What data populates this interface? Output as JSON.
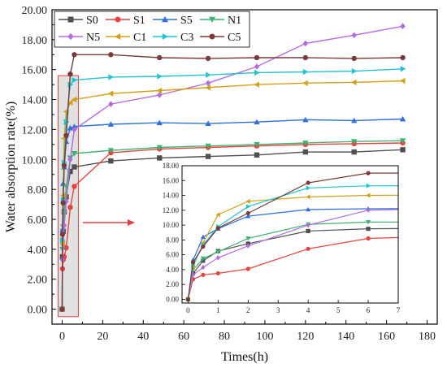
{
  "chart_data": [
    {
      "type": "line",
      "xlabel": "Times(h)",
      "ylabel": "Water absorption rate(%)",
      "xlim": [
        -5,
        185
      ],
      "ylim": [
        -1.0,
        20.0
      ],
      "xticks": [
        "0",
        "20",
        "40",
        "60",
        "80",
        "100",
        "120",
        "140",
        "160",
        "180"
      ],
      "yticks": [
        "0.00",
        "2.00",
        "4.00",
        "6.00",
        "8.00",
        "10.00",
        "12.00",
        "14.00",
        "16.00",
        "18.00",
        "20.00"
      ],
      "legend": "top-left, 2 rows",
      "highlight_region": [
        -2,
        8
      ],
      "series": [
        {
          "name": "S0",
          "color": "#505050",
          "marker": "square",
          "x": [
            0,
            0.167,
            0.5,
            1,
            2,
            4,
            6,
            24,
            48,
            72,
            96,
            120,
            144,
            168
          ],
          "y": [
            0,
            3.5,
            5.2,
            6.5,
            7.5,
            9.2,
            9.5,
            9.9,
            10.1,
            10.2,
            10.3,
            10.5,
            10.5,
            10.65
          ]
        },
        {
          "name": "S1",
          "color": "#e8423d",
          "marker": "circle",
          "x": [
            0,
            0.167,
            0.5,
            1,
            2,
            4,
            6,
            24,
            48,
            72,
            96,
            120,
            144,
            168
          ],
          "y": [
            0,
            2.7,
            3.3,
            3.5,
            4.1,
            6.8,
            8.2,
            10.45,
            10.7,
            10.8,
            10.9,
            11.0,
            11.05,
            11.1
          ]
        },
        {
          "name": "S5",
          "color": "#2f6fdb",
          "marker": "triangle-up",
          "x": [
            0,
            0.167,
            0.5,
            1,
            2,
            4,
            6,
            24,
            48,
            72,
            96,
            120,
            144,
            168
          ],
          "y": [
            0,
            5.3,
            8.4,
            9.5,
            11.2,
            12.1,
            12.2,
            12.35,
            12.45,
            12.4,
            12.5,
            12.65,
            12.6,
            12.7
          ]
        },
        {
          "name": "N1",
          "color": "#3cb371",
          "marker": "triangle-down",
          "x": [
            0,
            0.167,
            0.5,
            1,
            2,
            4,
            6,
            24,
            48,
            72,
            96,
            120,
            144,
            168
          ],
          "y": [
            0,
            4.0,
            5.5,
            6.4,
            8.2,
            10.1,
            10.4,
            10.6,
            10.8,
            10.9,
            11.0,
            11.1,
            11.2,
            11.25
          ]
        },
        {
          "name": "N5",
          "color": "#b36be0",
          "marker": "diamond",
          "x": [
            0,
            0.167,
            0.5,
            1,
            2,
            4,
            6,
            24,
            48,
            72,
            96,
            120,
            144,
            168
          ],
          "y": [
            0,
            3.3,
            4.3,
            5.6,
            7.2,
            10.0,
            12.0,
            13.7,
            14.3,
            15.1,
            16.2,
            17.75,
            18.3,
            18.9
          ]
        },
        {
          "name": "C1",
          "color": "#d4a017",
          "marker": "triangle-left",
          "x": [
            0,
            0.167,
            0.5,
            1,
            2,
            4,
            6,
            24,
            48,
            72,
            96,
            120,
            144,
            168
          ],
          "y": [
            0,
            4.4,
            7.6,
            11.4,
            13.2,
            13.8,
            14.0,
            14.4,
            14.6,
            14.8,
            15.0,
            15.1,
            15.15,
            15.25
          ]
        },
        {
          "name": "C3",
          "color": "#20c4d0",
          "marker": "triangle-right",
          "x": [
            0,
            0.167,
            0.5,
            1,
            2,
            4,
            6,
            24,
            48,
            72,
            96,
            120,
            144,
            168
          ],
          "y": [
            0,
            4.6,
            7.3,
            9.8,
            12.5,
            15.0,
            15.3,
            15.5,
            15.55,
            15.65,
            15.8,
            15.85,
            15.9,
            16.05
          ]
        },
        {
          "name": "C5",
          "color": "#7a3b3b",
          "marker": "circle",
          "x": [
            0,
            0.167,
            0.5,
            1,
            2,
            4,
            6,
            24,
            48,
            72,
            96,
            120,
            144,
            168
          ],
          "y": [
            0,
            5.0,
            7.1,
            9.6,
            11.6,
            15.7,
            17.0,
            17.0,
            16.8,
            16.75,
            16.8,
            16.8,
            16.75,
            16.8
          ]
        }
      ]
    },
    {
      "type": "line",
      "inset_of": 0,
      "xlim": [
        -0.2,
        7
      ],
      "ylim": [
        -0.5,
        18
      ],
      "xticks": [
        "0",
        "1",
        "2",
        "3",
        "4",
        "5",
        "6",
        "7"
      ],
      "yticks": [
        "0.00",
        "2.00",
        "4.00",
        "6.00",
        "8.00",
        "10.00",
        "12.00",
        "14.00",
        "16.00",
        "18.00"
      ],
      "series_from_main": true
    }
  ]
}
